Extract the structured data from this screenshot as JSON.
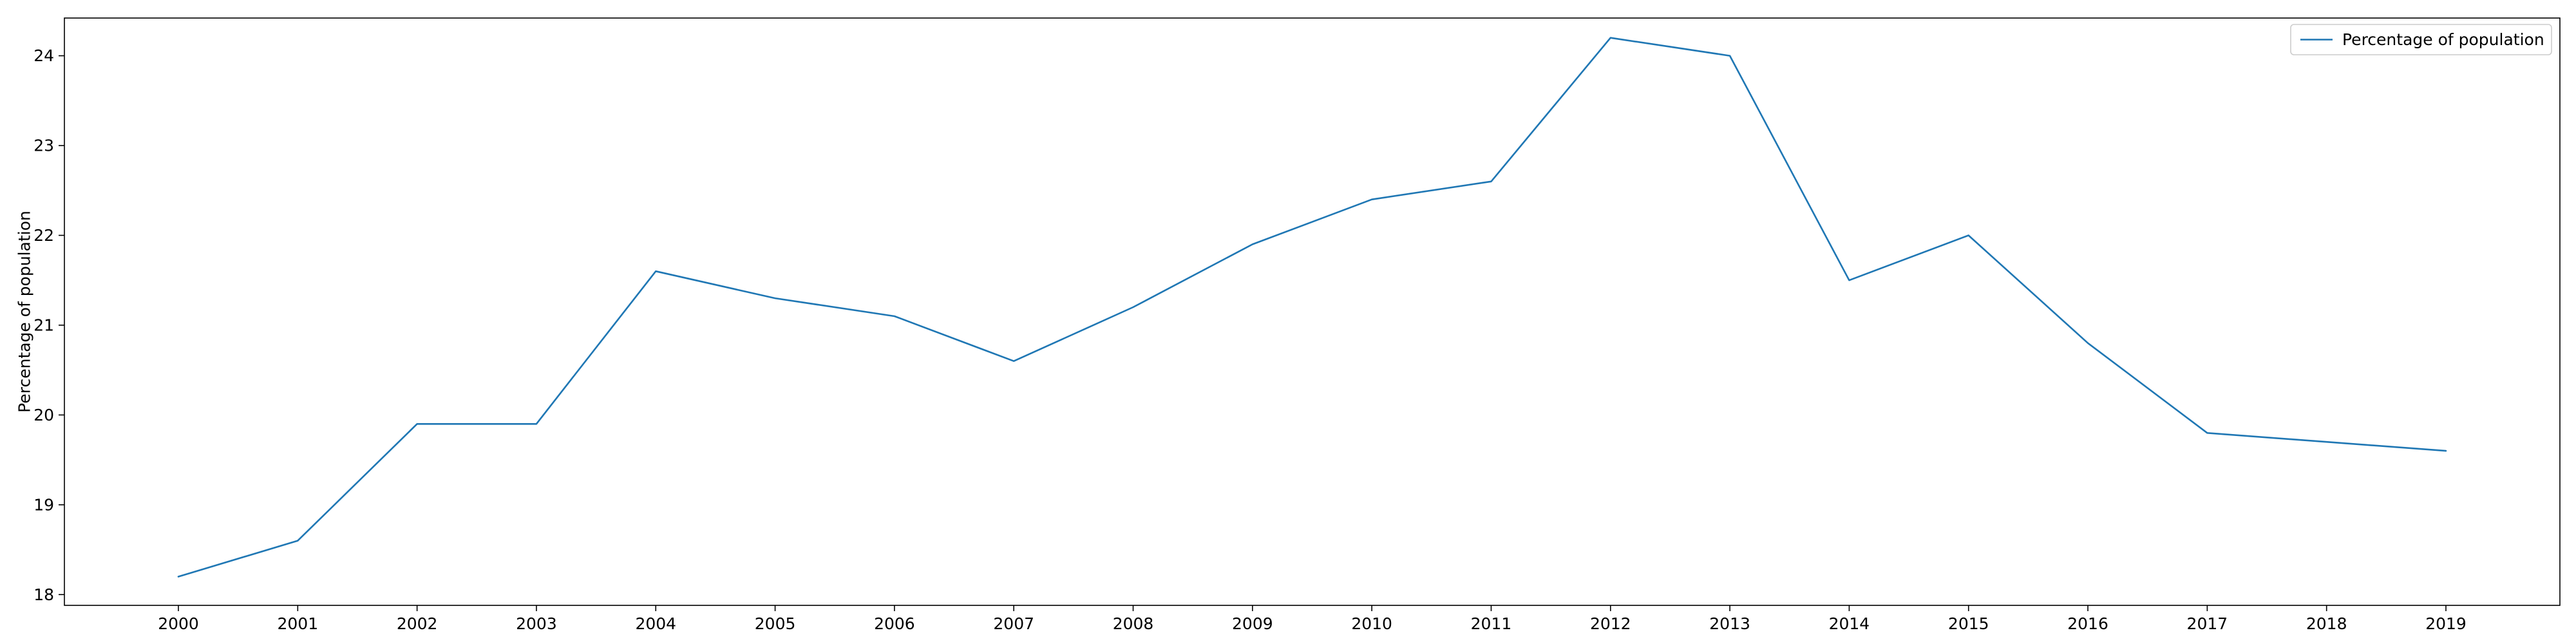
{
  "chart_data": {
    "type": "line",
    "title": "",
    "xlabel": "",
    "ylabel": "Percentage of population",
    "ylim": [
      17.88,
      24.42
    ],
    "yticks": [
      18,
      19,
      20,
      21,
      22,
      23,
      24
    ],
    "grid": false,
    "legend_position": "top-right",
    "categories": [
      "2000",
      "2001",
      "2002",
      "2003",
      "2004",
      "2005",
      "2006",
      "2007",
      "2008",
      "2009",
      "2010",
      "2011",
      "2012",
      "2013",
      "2014",
      "2015",
      "2016",
      "2017",
      "2018",
      "2019"
    ],
    "series": [
      {
        "name": "Percentage of population",
        "color": "#1f77b4",
        "values": [
          18.2,
          18.6,
          19.9,
          19.9,
          21.6,
          21.3,
          21.1,
          20.6,
          21.2,
          21.9,
          22.4,
          22.6,
          24.2,
          24.0,
          21.5,
          22.0,
          20.8,
          19.8,
          19.7,
          19.6
        ]
      }
    ]
  }
}
